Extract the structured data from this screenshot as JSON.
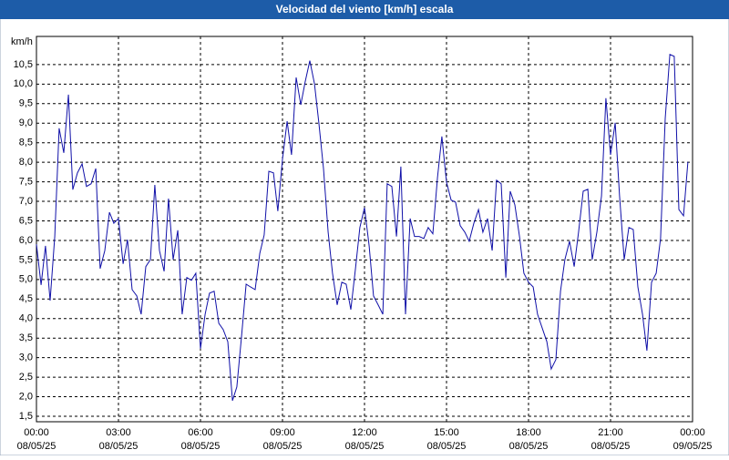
{
  "chart_data": {
    "type": "line",
    "title": "Velocidad del viento [km/h] escala",
    "y_label": "km/h",
    "xlim": [
      0,
      24
    ],
    "ylim": [
      1.36,
      11.22
    ],
    "grid": true,
    "xticks": [
      {
        "value": 0,
        "label": "00:00\n08/05/25"
      },
      {
        "value": 3,
        "label": "03:00\n08/05/25"
      },
      {
        "value": 6,
        "label": "06:00\n08/05/25"
      },
      {
        "value": 9,
        "label": "09:00\n08/05/25"
      },
      {
        "value": 12,
        "label": "12:00\n08/05/25"
      },
      {
        "value": 15,
        "label": "15:00\n08/05/25"
      },
      {
        "value": 18,
        "label": "18:00\n08/05/25"
      },
      {
        "value": 21,
        "label": "21:00\n08/05/25"
      },
      {
        "value": 24,
        "label": "00:00\n09/05/25"
      }
    ],
    "yticks": [
      {
        "value": 1.5,
        "label": "1,5"
      },
      {
        "value": 2,
        "label": "2,0"
      },
      {
        "value": 2.5,
        "label": "2,5"
      },
      {
        "value": 3,
        "label": "3,0"
      },
      {
        "value": 3.5,
        "label": "3,5"
      },
      {
        "value": 4,
        "label": "4,0"
      },
      {
        "value": 4.5,
        "label": "4,5"
      },
      {
        "value": 5,
        "label": "5,0"
      },
      {
        "value": 5.5,
        "label": "5,5"
      },
      {
        "value": 6,
        "label": "6,0"
      },
      {
        "value": 6.5,
        "label": "6,5"
      },
      {
        "value": 7,
        "label": "7,0"
      },
      {
        "value": 7.5,
        "label": "7,5"
      },
      {
        "value": 8,
        "label": "8,0"
      },
      {
        "value": 8.5,
        "label": "8,5"
      },
      {
        "value": 9,
        "label": "9,0"
      },
      {
        "value": 9.5,
        "label": "9,5"
      },
      {
        "value": 10,
        "label": "10,0"
      },
      {
        "value": 10.5,
        "label": "10,5"
      }
    ],
    "x": [
      0,
      0.17,
      0.33,
      0.5,
      0.67,
      0.83,
      1,
      1.17,
      1.33,
      1.5,
      1.67,
      1.83,
      2,
      2.17,
      2.33,
      2.5,
      2.67,
      2.83,
      3,
      3.17,
      3.33,
      3.5,
      3.67,
      3.83,
      4,
      4.17,
      4.33,
      4.5,
      4.67,
      4.83,
      5,
      5.17,
      5.33,
      5.5,
      5.67,
      5.83,
      6,
      6.17,
      6.33,
      6.5,
      6.67,
      6.83,
      7,
      7.17,
      7.33,
      7.5,
      7.67,
      7.83,
      8,
      8.17,
      8.33,
      8.5,
      8.67,
      8.83,
      9,
      9.17,
      9.33,
      9.5,
      9.67,
      9.83,
      10,
      10.17,
      10.33,
      10.5,
      10.67,
      10.83,
      11,
      11.17,
      11.33,
      11.5,
      11.67,
      11.83,
      12,
      12.17,
      12.33,
      12.5,
      12.67,
      12.83,
      13,
      13.17,
      13.33,
      13.5,
      13.67,
      13.83,
      14,
      14.17,
      14.33,
      14.5,
      14.67,
      14.83,
      15,
      15.17,
      15.33,
      15.5,
      15.67,
      15.83,
      16,
      16.17,
      16.33,
      16.5,
      16.67,
      16.83,
      17,
      17.17,
      17.33,
      17.5,
      17.67,
      17.83,
      18,
      18.17,
      18.33,
      18.5,
      18.67,
      18.83,
      19,
      19.17,
      19.33,
      19.5,
      19.67,
      19.83,
      20,
      20.17,
      20.33,
      20.5,
      20.67,
      20.83,
      21,
      21.17,
      21.33,
      21.5,
      21.67,
      21.83,
      22,
      22.17,
      22.33,
      22.5,
      22.67,
      22.83,
      23,
      23.17,
      23.33,
      23.5,
      23.67,
      23.83
    ],
    "series": [
      {
        "color": "#1010a8",
        "values": [
          5.9,
          4.86,
          5.86,
          4.46,
          6.1,
          8.87,
          8.24,
          9.73,
          7.3,
          7.73,
          7.96,
          7.38,
          7.45,
          7.84,
          5.28,
          5.74,
          6.72,
          6.44,
          6.56,
          5.4,
          6.02,
          4.74,
          4.58,
          4.11,
          5.33,
          5.51,
          7.42,
          5.74,
          5.21,
          7.07,
          5.51,
          6.26,
          4.11,
          5.05,
          4.98,
          5.16,
          3.23,
          4.11,
          4.65,
          4.7,
          3.88,
          3.72,
          3.41,
          1.9,
          2.25,
          3.53,
          4.88,
          4.81,
          4.74,
          5.67,
          6.14,
          7.77,
          7.73,
          6.75,
          8.08,
          9.05,
          8.19,
          10.17,
          9.47,
          10.06,
          10.6,
          10.01,
          9.01,
          7.84,
          6.21,
          5.16,
          4.35,
          4.93,
          4.88,
          4.23,
          5.28,
          6.33,
          6.84,
          5.86,
          4.58,
          4.35,
          4.11,
          7.45,
          7.38,
          6.1,
          7.89,
          4.11,
          6.56,
          6.1,
          6.1,
          6.05,
          6.33,
          6.17,
          7.61,
          8.66,
          7.49,
          7.03,
          6.98,
          6.38,
          6.21,
          5.98,
          6.44,
          6.79,
          6.21,
          6.56,
          5.74,
          7.54,
          7.45,
          5.05,
          7.26,
          6.91,
          6.1,
          5.16,
          4.93,
          4.81,
          4.11,
          3.76,
          3.41,
          2.71,
          2.95,
          4.7,
          5.51,
          5.98,
          5.33,
          6.21,
          7.26,
          7.31,
          5.51,
          6.21,
          7.14,
          9.64,
          8.19,
          9.01,
          7.14,
          5.51,
          6.33,
          6.28,
          4.81,
          4.11,
          3.18,
          4.93,
          5.16,
          6.05,
          9.12,
          10.76,
          10.71,
          6.79,
          6.63,
          8.01
        ]
      }
    ]
  }
}
